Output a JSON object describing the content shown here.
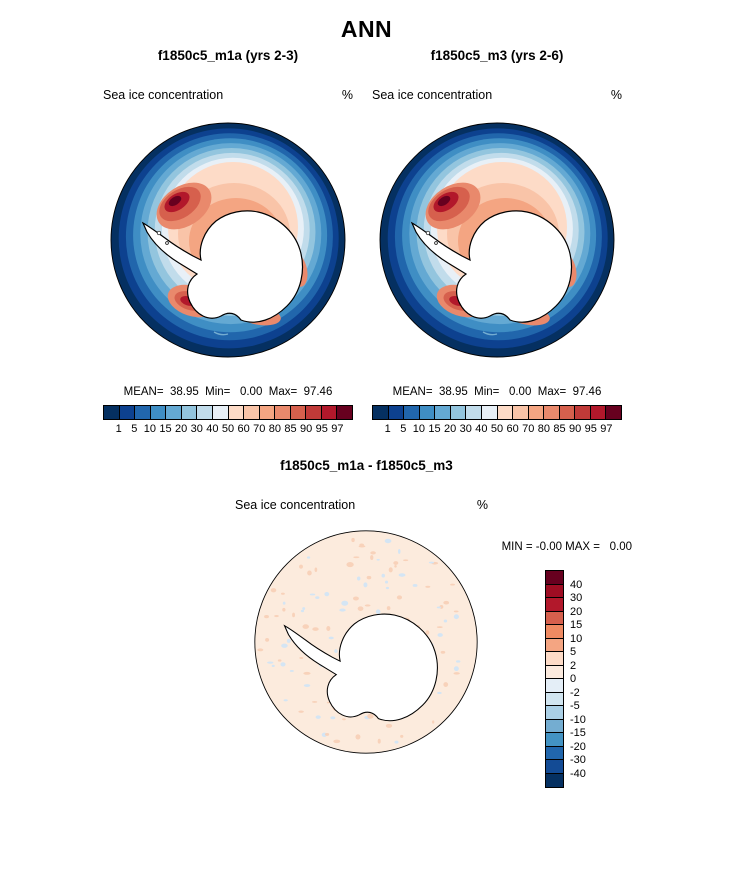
{
  "title": "ANN",
  "panels": [
    {
      "title": "f1850c5_m1a (yrs 2-3)",
      "var_label": "Sea ice concentration",
      "units": "%",
      "stats": "MEAN=  38.95  Min=   0.00  Max=  97.46"
    },
    {
      "title": "f1850c5_m3 (yrs 2-6)",
      "var_label": "Sea ice concentration",
      "units": "%",
      "stats": "MEAN=  38.95  Min=   0.00  Max=  97.46"
    }
  ],
  "conc_colorbar": {
    "tick_labels": [
      "1",
      "5",
      "10",
      "15",
      "20",
      "30",
      "40",
      "50",
      "60",
      "70",
      "80",
      "85",
      "90",
      "95",
      "97"
    ],
    "colors": [
      "#053061",
      "#0d418f",
      "#2166ac",
      "#3f8ec4",
      "#64a9d3",
      "#93c5de",
      "#c1dceb",
      "#e8f0f7",
      "#fddbc7",
      "#f9c4a8",
      "#f4a582",
      "#e9896c",
      "#d6604d",
      "#c03a38",
      "#b2182b",
      "#67001f"
    ]
  },
  "diff": {
    "title": "f1850c5_m1a - f1850c5_m3",
    "var_label": "Sea ice concentration",
    "units": "%",
    "minmax": "MIN = -0.00 MAX =   0.00"
  },
  "diff_colorbar": {
    "tick_labels": [
      "40",
      "30",
      "20",
      "15",
      "10",
      "5",
      "2",
      "0",
      "-2",
      "-5",
      "-10",
      "-15",
      "-20",
      "-30",
      "-40"
    ],
    "colors": [
      "#67001f",
      "#9e0d23",
      "#b2182b",
      "#d6604d",
      "#ef8a62",
      "#f4a582",
      "#fddbc7",
      "#fbeade",
      "#e4eef7",
      "#d1e5f0",
      "#abd0e6",
      "#74add1",
      "#4393c3",
      "#2166ac",
      "#134b95",
      "#053061"
    ]
  },
  "chart_data": [
    {
      "type": "heatmap",
      "title": "f1850c5_m1a (yrs 2-3)",
      "variable": "Sea ice concentration",
      "units": "%",
      "region": "Antarctic, south polar stereographic map",
      "stats": {
        "mean": 38.95,
        "min": 0.0,
        "max": 97.46
      },
      "contour_levels": [
        1,
        5,
        10,
        15,
        20,
        30,
        40,
        50,
        60,
        70,
        80,
        85,
        90,
        95,
        97
      ],
      "palette": "blue (low, ice edge) to dark red (high, near coast)",
      "legend_position": "horizontal bar below map"
    },
    {
      "type": "heatmap",
      "title": "f1850c5_m3 (yrs 2-6)",
      "variable": "Sea ice concentration",
      "units": "%",
      "region": "Antarctic, south polar stereographic map",
      "stats": {
        "mean": 38.95,
        "min": 0.0,
        "max": 97.46
      },
      "contour_levels": [
        1,
        5,
        10,
        15,
        20,
        30,
        40,
        50,
        60,
        70,
        80,
        85,
        90,
        95,
        97
      ],
      "palette": "blue (low, ice edge) to dark red (high, near coast)",
      "legend_position": "horizontal bar below map"
    },
    {
      "type": "heatmap",
      "title": "f1850c5_m1a - f1850c5_m3",
      "variable": "Sea ice concentration",
      "units": "%",
      "region": "Antarctic, south polar stereographic map",
      "stats": {
        "min": -0.0,
        "max": 0.0
      },
      "contour_levels": [
        40,
        30,
        20,
        15,
        10,
        5,
        2,
        0,
        -2,
        -5,
        -10,
        -15,
        -20,
        -30,
        -40
      ],
      "palette": "dark red (positive) to dark blue (negative)",
      "legend_position": "vertical bar right of map",
      "field_summary": "difference is approximately zero everywhere (pale 0-2 band with scattered -2-0 specks)"
    }
  ]
}
